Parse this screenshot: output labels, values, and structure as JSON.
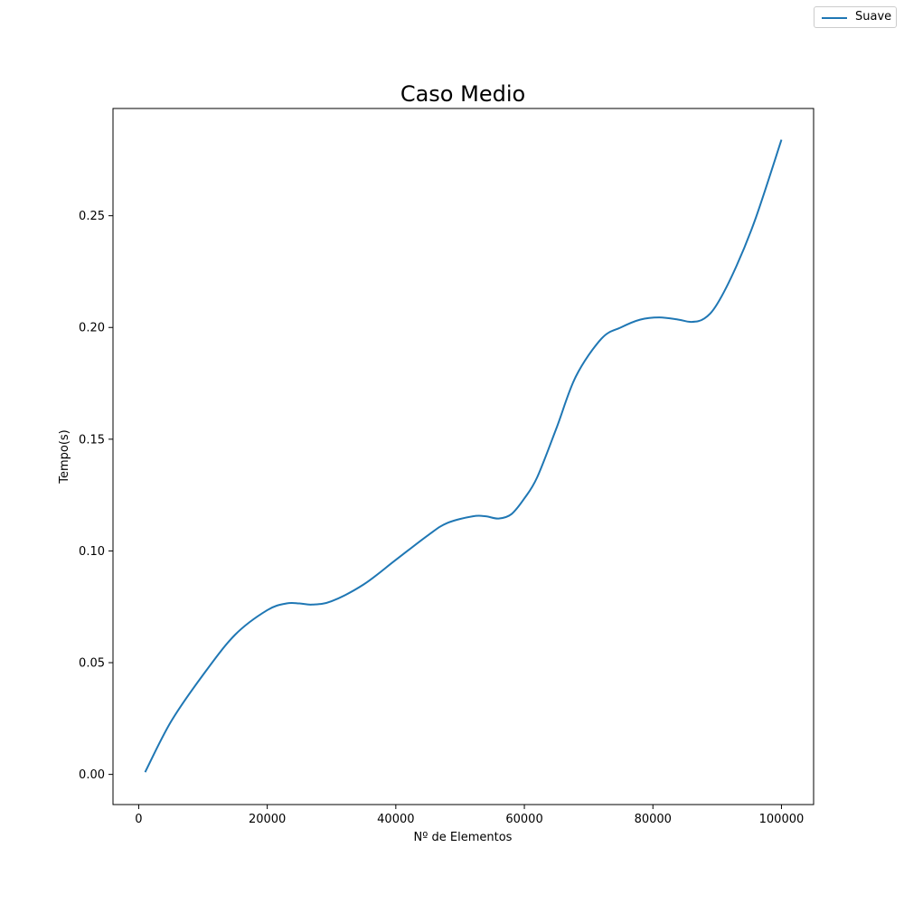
{
  "chart_data": {
    "type": "line",
    "title": "Caso Medio",
    "xlabel": "Nº de Elementos",
    "ylabel": "Tempo(s)",
    "xlim": [
      -4000,
      105000
    ],
    "ylim": [
      -0.0135,
      0.298
    ],
    "x_ticks": [
      0,
      20000,
      40000,
      60000,
      80000,
      100000
    ],
    "x_tick_labels": [
      "0",
      "20000",
      "40000",
      "60000",
      "80000",
      "100000"
    ],
    "y_ticks": [
      0.0,
      0.05,
      0.1,
      0.15,
      0.2,
      0.25
    ],
    "y_tick_labels": [
      "0.00",
      "0.05",
      "0.10",
      "0.15",
      "0.20",
      "0.25"
    ],
    "grid": false,
    "legend_position": "top-right",
    "series": [
      {
        "name": "Suave",
        "color": "#1f77b4",
        "x": [
          1000,
          5000,
          10000,
          15000,
          20000,
          23000,
          25000,
          27000,
          30000,
          35000,
          40000,
          45000,
          48000,
          52000,
          54000,
          56000,
          58000,
          60000,
          62000,
          65000,
          68000,
          72000,
          75000,
          78000,
          81000,
          84000,
          86000,
          88000,
          90000,
          93000,
          96000,
          100000
        ],
        "y": [
          0.001,
          0.0235,
          0.0445,
          0.0625,
          0.0735,
          0.0765,
          0.0765,
          0.076,
          0.0775,
          0.085,
          0.096,
          0.107,
          0.1125,
          0.1155,
          0.1155,
          0.1145,
          0.1165,
          0.1235,
          0.133,
          0.155,
          0.178,
          0.195,
          0.2,
          0.2035,
          0.2045,
          0.2035,
          0.2025,
          0.204,
          0.2105,
          0.2275,
          0.249,
          0.284
        ]
      }
    ]
  }
}
